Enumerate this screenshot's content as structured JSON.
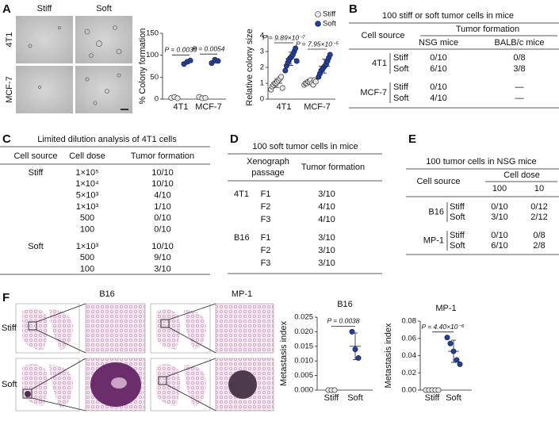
{
  "panel_labels": [
    "A",
    "B",
    "C",
    "D",
    "E",
    "F"
  ],
  "panel_a_images": {
    "columns": [
      "Stiff",
      "Soft"
    ],
    "rows": [
      "4T1",
      "MCF-7"
    ]
  },
  "panel_f_images": {
    "columns": [
      "B16",
      "MP-1"
    ],
    "rows": [
      "Stiff",
      "Soft"
    ]
  },
  "chart_data": [
    {
      "type": "dot",
      "ylabel": "% Colony formation",
      "categories": [
        "4T1",
        "MCF-7"
      ],
      "series": [
        {
          "name": "Stiff",
          "color": "#e8e8e8",
          "values": [
            [
              3,
              5,
              2
            ],
            [
              5,
              2,
              3
            ]
          ]
        },
        {
          "name": "Soft",
          "color": "#1f3ea8",
          "values": [
            [
              80,
              85,
              88
            ],
            [
              82,
              90,
              87
            ]
          ]
        }
      ],
      "ylim": [
        0,
        150
      ],
      "yticks": [
        0,
        50,
        100,
        150
      ],
      "annotations": [
        "P = 0.0039",
        "P = 0.0054"
      ]
    },
    {
      "type": "dot",
      "ylabel": "Relative colony size",
      "categories": [
        "4T1",
        "MCF-7"
      ],
      "series": [
        {
          "name": "Stiff",
          "color": "#e8e8e8",
          "values": [
            [
              0.6,
              0.8,
              0.9,
              1.0,
              1.0,
              1.1,
              1.2,
              1.3,
              1.4,
              0.7
            ],
            [
              0.9,
              1.0,
              1.0,
              1.1,
              1.1,
              1.2,
              1.0,
              0.9,
              1.2,
              1.1
            ]
          ]
        },
        {
          "name": "Soft",
          "color": "#1f3ea8",
          "values": [
            [
              1.8,
              2.1,
              2.3,
              2.5,
              2.6,
              2.7,
              2.8,
              3.0,
              3.2,
              2.4
            ],
            [
              1.4,
              1.6,
              1.8,
              1.9,
              2.0,
              2.1,
              2.2,
              2.4,
              2.6,
              2.8
            ]
          ]
        }
      ],
      "ylim": [
        0,
        4
      ],
      "yticks": [
        0,
        1,
        2,
        3,
        4
      ],
      "annotations": [
        "P = 9.89×10⁻⁷",
        "P = 7.95×10⁻⁵"
      ],
      "legend": "top-right"
    },
    {
      "type": "dot",
      "title": "B16",
      "ylabel": "Metastasis index",
      "categories": [
        "Stiff",
        "Soft"
      ],
      "colors": [
        "#e8e8e8",
        "#1f3ea8"
      ],
      "values": [
        [
          0,
          0,
          0
        ],
        [
          0.02,
          0.014,
          0.011
        ]
      ],
      "ylim": [
        0,
        0.025
      ],
      "yticks": [
        {
          "value": 0,
          "label": "0.000"
        },
        0.005,
        {
          "value": 0.01,
          "label": "0.010"
        },
        0.015,
        {
          "value": 0.02,
          "label": "0.020"
        },
        0.025
      ],
      "annotations": [
        "P = 0.0038"
      ]
    },
    {
      "type": "dot",
      "title": "MP-1",
      "ylabel": "Metastasis index",
      "categories": [
        "Stiff",
        "Soft"
      ],
      "colors": [
        "#e8e8e8",
        "#1f3ea8"
      ],
      "values": [
        [
          0,
          0,
          0,
          0,
          0
        ],
        [
          0.061,
          0.054,
          0.045,
          0.035,
          0.03
        ]
      ],
      "ylim": [
        0,
        0.08
      ],
      "yticks": [
        {
          "value": 0,
          "label": "0.00"
        },
        {
          "value": 0.02,
          "label": "0.02"
        },
        {
          "value": 0.04,
          "label": "0.04"
        },
        {
          "value": 0.06,
          "label": "0.06"
        },
        {
          "value": 0.08,
          "label": "0.08"
        }
      ],
      "annotations": [
        "P = 4.40×10⁻⁶"
      ]
    }
  ],
  "tables": [
    {
      "title": "100 stiff or soft tumor cells in mice",
      "source_header": "Cell source",
      "group_header": "Tumor formation",
      "column_headers": [
        "NSG mice",
        "BALB/c mice"
      ],
      "groups": [
        {
          "source": "4T1",
          "rows": [
            [
              "Stiff",
              "0/10",
              "0/8"
            ],
            [
              "Soft",
              "6/10",
              "3/8"
            ]
          ]
        },
        {
          "source": "MCF-7",
          "rows": [
            [
              "Stiff",
              "0/10",
              "—"
            ],
            [
              "Soft",
              "4/10",
              "—"
            ]
          ]
        }
      ]
    },
    {
      "title": "Limited dilution analysis of 4T1 cells",
      "column_headers": [
        "Cell source",
        "Cell dose",
        "Tumor formation"
      ],
      "groups": [
        {
          "source": "Stiff",
          "rows": [
            [
              "1×10⁵",
              "10/10"
            ],
            [
              "1×10⁴",
              "10/10"
            ],
            [
              "5×10³",
              "4/10"
            ],
            [
              "1×10³",
              "1/10"
            ],
            [
              "500",
              "0/10"
            ],
            [
              "100",
              "0/10"
            ]
          ]
        },
        {
          "source": "Soft",
          "rows": [
            [
              "1×10³",
              "10/10"
            ],
            [
              "500",
              "9/10"
            ],
            [
              "100",
              "3/10"
            ]
          ]
        }
      ]
    },
    {
      "title": "100 soft tumor cells in mice",
      "passage_header": [
        "Xenograph",
        "passage"
      ],
      "column_headers": [
        "Tumor formation"
      ],
      "groups": [
        {
          "source": "4T1",
          "rows": [
            [
              "F1",
              "3/10"
            ],
            [
              "F2",
              "4/10"
            ],
            [
              "F3",
              "4/10"
            ]
          ]
        },
        {
          "source": "B16",
          "rows": [
            [
              "F1",
              "3/10"
            ],
            [
              "F2",
              "3/10"
            ],
            [
              "F3",
              "3/10"
            ]
          ]
        }
      ]
    },
    {
      "title": "100 tumor cells in NSG mice",
      "source_header": "Cell source",
      "group_header": "Cell dose",
      "column_headers": [
        "100",
        "10"
      ],
      "groups": [
        {
          "source": "B16",
          "rows": [
            [
              "Stiff",
              "0/10",
              "0/12"
            ],
            [
              "Soft",
              "3/10",
              "2/12"
            ]
          ]
        },
        {
          "source": "MP-1",
          "rows": [
            [
              "Stiff",
              "0/10",
              "0/8"
            ],
            [
              "Soft",
              "6/10",
              "2/8"
            ]
          ]
        }
      ]
    }
  ]
}
